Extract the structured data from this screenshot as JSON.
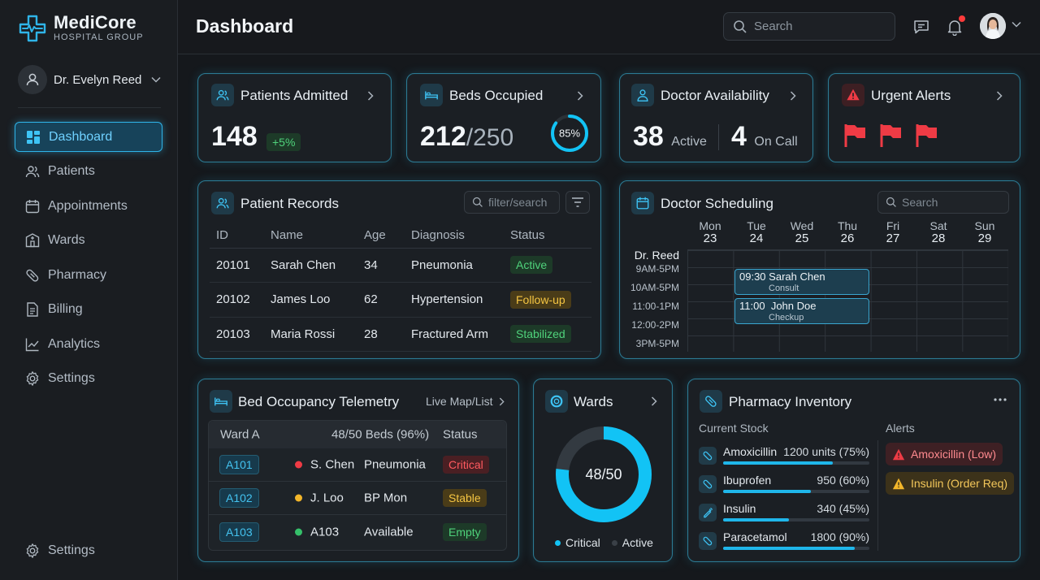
{
  "brand": {
    "name": "MediCore",
    "sub": "HOSPITAL GROUP",
    "accent": "#2fb4e8"
  },
  "user": {
    "name": "Dr. Evelyn Reed"
  },
  "nav": {
    "items": [
      {
        "label": "Dashboard",
        "icon": "dashboard-icon",
        "active": true
      },
      {
        "label": "Patients",
        "icon": "users-icon"
      },
      {
        "label": "Appointments",
        "icon": "calendar-icon"
      },
      {
        "label": "Wards",
        "icon": "ward-icon"
      },
      {
        "label": "Pharmacy",
        "icon": "pill-icon"
      },
      {
        "label": "Billing",
        "icon": "document-icon"
      },
      {
        "label": "Analytics",
        "icon": "chart-icon"
      },
      {
        "label": "Settings",
        "icon": "gear-icon"
      }
    ],
    "bottom": {
      "label": "Settings",
      "icon": "gear-icon"
    }
  },
  "header": {
    "title": "Dashboard",
    "search_placeholder": "Search"
  },
  "cards": {
    "patients": {
      "title": "Patients Admitted",
      "value": "148",
      "change": "+5%"
    },
    "beds": {
      "title": "Beds Occupied",
      "value": "212",
      "total": "/250",
      "percent_label": "85%",
      "percent": 0.85
    },
    "doctors": {
      "title": "Doctor Availability",
      "active_value": "38",
      "active_label": "Active",
      "oncall_value": "4",
      "oncall_label": "On Call"
    },
    "alerts": {
      "title": "Urgent Alerts",
      "flag_count": 3
    }
  },
  "records": {
    "title": "Patient Records",
    "filter_placeholder": "filter/search",
    "columns": [
      "ID",
      "Name",
      "Age",
      "Diagnosis",
      "Status"
    ],
    "rows": [
      {
        "id": "20101",
        "name": "Sarah Chen",
        "age": "34",
        "diagnosis": "Pneumonia",
        "status": "Active",
        "tone": "green"
      },
      {
        "id": "20102",
        "name": "James Loo",
        "age": "62",
        "diagnosis": "Hypertension",
        "status": "Follow-up",
        "tone": "yellow"
      },
      {
        "id": "20103",
        "name": "Maria Rossi",
        "age": "28",
        "diagnosis": "Fractured Arm",
        "status": "Stabilized",
        "tone": "green"
      }
    ]
  },
  "schedule": {
    "title": "Doctor Scheduling",
    "search_placeholder": "Search",
    "days": [
      {
        "name": "Mon",
        "num": "23"
      },
      {
        "name": "Tue",
        "num": "24"
      },
      {
        "name": "Wed",
        "num": "25"
      },
      {
        "name": "Thu",
        "num": "26"
      },
      {
        "name": "Fri",
        "num": "27"
      },
      {
        "name": "Sat",
        "num": "28"
      },
      {
        "name": "Sun",
        "num": "29"
      }
    ],
    "doctor": "Dr. Reed",
    "times": [
      "9AM-5PM",
      "10AM-5PM",
      "11:00-1PM",
      "12:00-2PM",
      "3PM-5PM"
    ],
    "appointments": [
      {
        "time": "09:30",
        "patient": "Sarah Chen",
        "type": "Consult"
      },
      {
        "time": "11:00",
        "patient": "John Doe",
        "type": "Checkup"
      }
    ]
  },
  "telemetry": {
    "title": "Bed Occupancy Telemetry",
    "link": "Live Map/List",
    "ward": "Ward A",
    "beds_summary": "48/50 Beds (96%)",
    "status_header": "Status",
    "rows": [
      {
        "bed": "A101",
        "patient": "S. Chen",
        "info": "Pneumonia",
        "status": "Critical",
        "tone": "red",
        "dot": "#ef3b45"
      },
      {
        "bed": "A102",
        "patient": "J. Loo",
        "info": "BP Mon",
        "status": "Stable",
        "tone": "yellow",
        "dot": "#f3b62a"
      },
      {
        "bed": "A103",
        "patient": "A103",
        "info": "Available",
        "status": "Empty",
        "tone": "green",
        "dot": "#35c06a"
      }
    ]
  },
  "wards": {
    "title": "Wards",
    "ring_label": "48/50",
    "occupied": 48,
    "capacity": 50,
    "legend": [
      {
        "label": "Critical",
        "color": "#12c3f5"
      },
      {
        "label": "Active",
        "color": "#3a4047"
      }
    ]
  },
  "pharmacy": {
    "title": "Pharmacy Inventory",
    "stock_label": "Current Stock",
    "alerts_label": "Alerts",
    "items": [
      {
        "name": "Amoxicillin",
        "qty": "1200 units (75%)",
        "level": 0.75
      },
      {
        "name": "Ibuprofen",
        "qty": "950 (60%)",
        "level": 0.6
      },
      {
        "name": "Insulin",
        "qty": "340 (45%)",
        "level": 0.45
      },
      {
        "name": "Paracetamol",
        "qty": "1800 (90%)",
        "level": 0.9
      }
    ],
    "alerts": [
      {
        "label": "Amoxicillin (Low)",
        "tone": "red"
      },
      {
        "label": "Insulin (Order Req)",
        "tone": "yellow"
      }
    ]
  }
}
